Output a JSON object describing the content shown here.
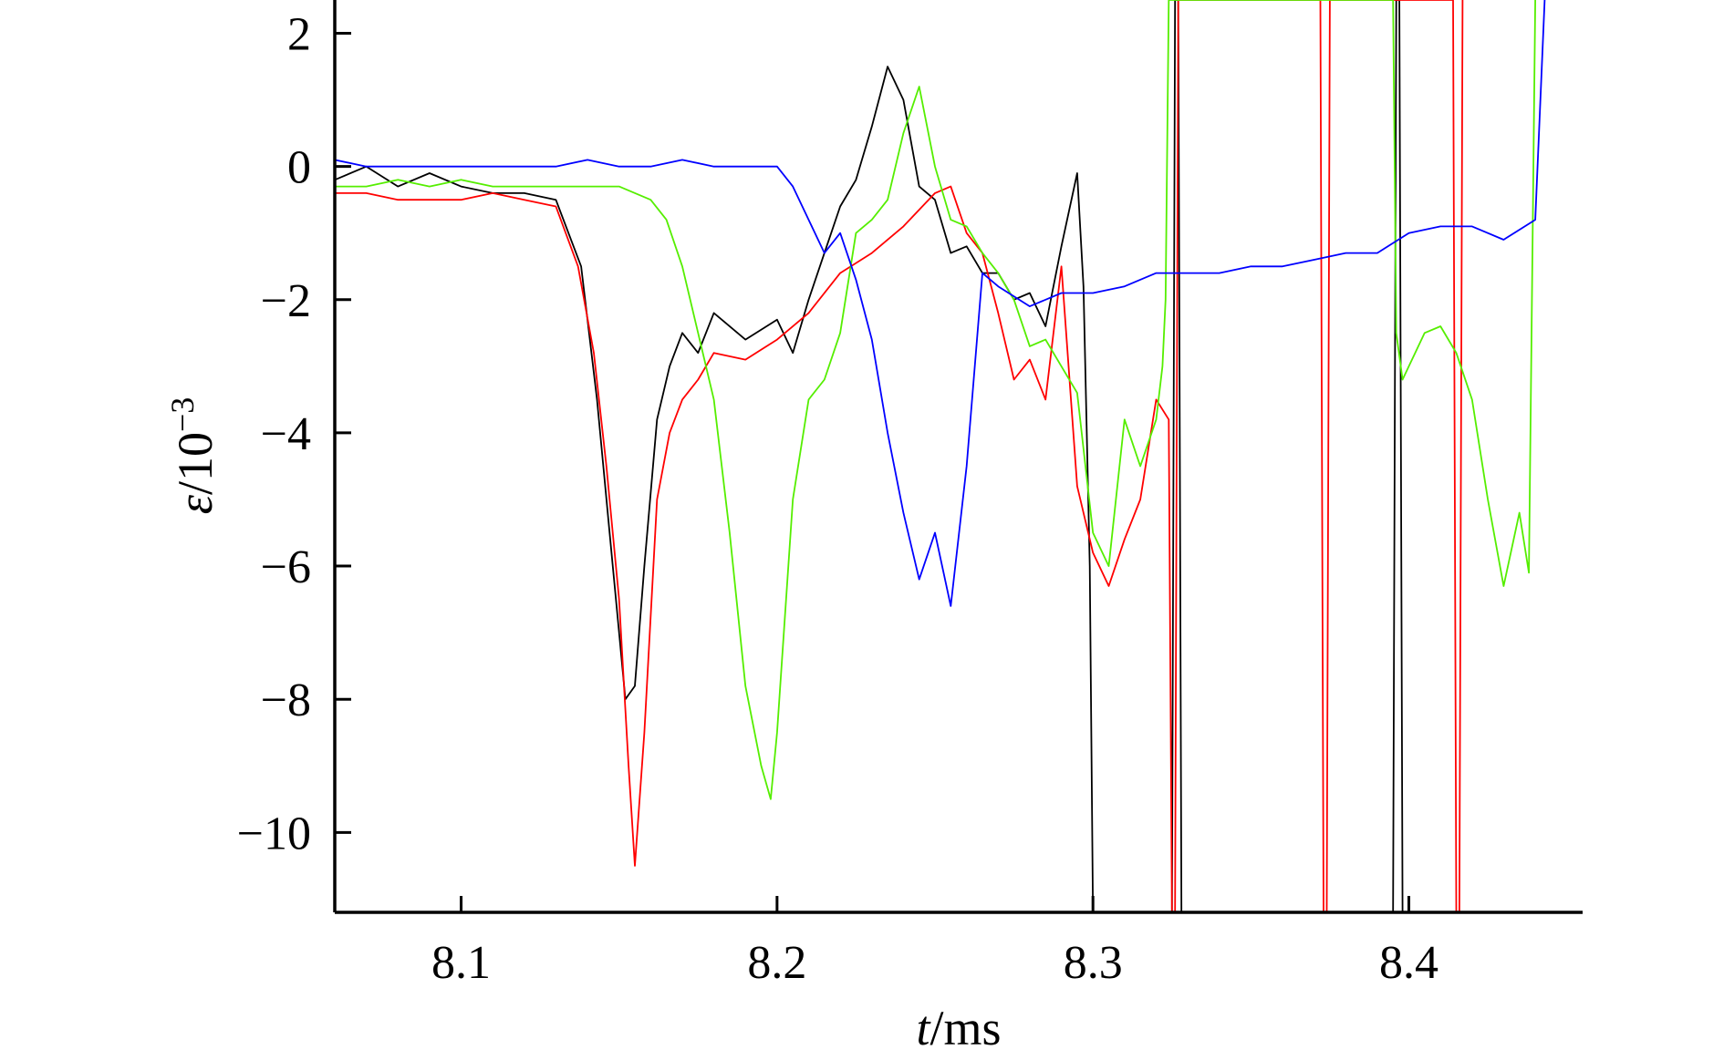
{
  "chart_data": {
    "type": "line",
    "title": "",
    "xlabel": {
      "italic": "t",
      "rest": "/ms"
    },
    "ylabel": {
      "italic": "ε",
      "rest": "/10",
      "sup": "−3"
    },
    "xlim": [
      8.06,
      8.455
    ],
    "ylim": [
      -11.2,
      2.5
    ],
    "xticks": [
      8.1,
      8.2,
      8.3,
      8.4
    ],
    "xtick_labels": [
      "8.1",
      "8.2",
      "8.3",
      "8.4"
    ],
    "yticks": [
      2,
      0,
      -2,
      -4,
      -6,
      -8,
      -10
    ],
    "ytick_labels": [
      "2",
      "0",
      "−2",
      "−4",
      "−6",
      "−8",
      "−10"
    ],
    "grid": false,
    "legend": "none",
    "series": [
      {
        "color": "#000000",
        "x": [
          8.06,
          8.07,
          8.08,
          8.09,
          8.1,
          8.11,
          8.12,
          8.13,
          8.138,
          8.143,
          8.147,
          8.15,
          8.152,
          8.155,
          8.158,
          8.162,
          8.166,
          8.17,
          8.175,
          8.18,
          8.19,
          8.2,
          8.205,
          8.21,
          8.215,
          8.22,
          8.225,
          8.23,
          8.235,
          8.24,
          8.245,
          8.25,
          8.255,
          8.26,
          8.265,
          8.27,
          8.275,
          8.28,
          8.285,
          8.29,
          8.295,
          8.297,
          8.299,
          8.3,
          8.32,
          8.325,
          8.326,
          8.327,
          8.328,
          8.395,
          8.396,
          8.397,
          8.398
        ],
        "y": [
          -0.2,
          0.0,
          -0.3,
          -0.1,
          -0.3,
          -0.4,
          -0.4,
          -0.5,
          -1.5,
          -3.5,
          -5.5,
          -7.0,
          -8.0,
          -7.8,
          -6.0,
          -3.8,
          -3.0,
          -2.5,
          -2.8,
          -2.2,
          -2.6,
          -2.3,
          -2.8,
          -2.0,
          -1.3,
          -0.6,
          -0.2,
          0.6,
          1.5,
          1.0,
          -0.3,
          -0.5,
          -1.3,
          -1.2,
          -1.6,
          -1.6,
          -2.0,
          -1.9,
          -2.4,
          -1.2,
          -0.1,
          -1.8,
          -6.0,
          -11.2,
          -11.2,
          -11.2,
          2.5,
          2.5,
          -11.2,
          -11.2,
          2.5,
          2.5,
          -11.2
        ]
      },
      {
        "color": "#ff0000",
        "x": [
          8.06,
          8.07,
          8.08,
          8.09,
          8.1,
          8.11,
          8.12,
          8.13,
          8.137,
          8.142,
          8.146,
          8.15,
          8.153,
          8.155,
          8.158,
          8.162,
          8.166,
          8.17,
          8.175,
          8.18,
          8.19,
          8.2,
          8.21,
          8.22,
          8.23,
          8.24,
          8.25,
          8.255,
          8.26,
          8.265,
          8.27,
          8.275,
          8.28,
          8.285,
          8.29,
          8.295,
          8.3,
          8.305,
          8.31,
          8.315,
          8.32,
          8.324,
          8.325,
          8.326,
          8.327,
          8.372,
          8.373,
          8.374,
          8.375,
          8.414,
          8.415,
          8.416,
          8.417
        ],
        "y": [
          -0.4,
          -0.4,
          -0.5,
          -0.5,
          -0.5,
          -0.4,
          -0.5,
          -0.6,
          -1.5,
          -2.8,
          -4.5,
          -6.5,
          -9.0,
          -10.5,
          -8.5,
          -5.0,
          -4.0,
          -3.5,
          -3.2,
          -2.8,
          -2.9,
          -2.6,
          -2.2,
          -1.6,
          -1.3,
          -0.9,
          -0.4,
          -0.3,
          -1.0,
          -1.3,
          -2.2,
          -3.2,
          -2.9,
          -3.5,
          -1.5,
          -4.8,
          -5.8,
          -6.3,
          -5.6,
          -5.0,
          -3.5,
          -3.8,
          -11.2,
          -11.2,
          2.5,
          2.5,
          -11.2,
          -11.2,
          2.5,
          2.5,
          -11.2,
          -11.2,
          2.5
        ]
      },
      {
        "color": "#55ee00",
        "x": [
          8.06,
          8.07,
          8.08,
          8.09,
          8.1,
          8.11,
          8.12,
          8.13,
          8.14,
          8.15,
          8.16,
          8.165,
          8.17,
          8.175,
          8.18,
          8.185,
          8.19,
          8.195,
          8.198,
          8.2,
          8.205,
          8.21,
          8.215,
          8.22,
          8.225,
          8.23,
          8.235,
          8.24,
          8.245,
          8.25,
          8.255,
          8.26,
          8.265,
          8.27,
          8.275,
          8.28,
          8.285,
          8.29,
          8.295,
          8.3,
          8.305,
          8.31,
          8.315,
          8.32,
          8.322,
          8.323,
          8.324,
          8.395,
          8.396,
          8.398,
          8.4,
          8.405,
          8.41,
          8.415,
          8.42,
          8.425,
          8.43,
          8.435,
          8.438,
          8.44
        ],
        "y": [
          -0.3,
          -0.3,
          -0.2,
          -0.3,
          -0.2,
          -0.3,
          -0.3,
          -0.3,
          -0.3,
          -0.3,
          -0.5,
          -0.8,
          -1.5,
          -2.5,
          -3.5,
          -5.5,
          -7.8,
          -9.0,
          -9.5,
          -8.5,
          -5.0,
          -3.5,
          -3.2,
          -2.5,
          -1.0,
          -0.8,
          -0.5,
          0.5,
          1.2,
          0.0,
          -0.8,
          -0.9,
          -1.3,
          -1.6,
          -2.0,
          -2.7,
          -2.6,
          -3.0,
          -3.4,
          -5.5,
          -6.0,
          -3.8,
          -4.5,
          -3.8,
          -3.0,
          -2.0,
          2.5,
          2.5,
          -2.5,
          -3.2,
          -3.0,
          -2.5,
          -2.4,
          -2.8,
          -3.5,
          -5.0,
          -6.3,
          -5.2,
          -6.1,
          2.5
        ]
      },
      {
        "color": "#0000ff",
        "x": [
          8.06,
          8.07,
          8.08,
          8.09,
          8.1,
          8.11,
          8.12,
          8.13,
          8.14,
          8.15,
          8.16,
          8.17,
          8.18,
          8.19,
          8.2,
          8.205,
          8.21,
          8.215,
          8.22,
          8.225,
          8.23,
          8.235,
          8.24,
          8.245,
          8.25,
          8.255,
          8.26,
          8.265,
          8.27,
          8.28,
          8.29,
          8.3,
          8.31,
          8.32,
          8.33,
          8.34,
          8.35,
          8.36,
          8.37,
          8.38,
          8.39,
          8.4,
          8.41,
          8.42,
          8.43,
          8.44,
          8.443
        ],
        "y": [
          0.1,
          0.0,
          0.0,
          0.0,
          0.0,
          0.0,
          0.0,
          0.0,
          0.1,
          0.0,
          0.0,
          0.1,
          0.0,
          0.0,
          0.0,
          -0.3,
          -0.8,
          -1.3,
          -1.0,
          -1.7,
          -2.6,
          -4.0,
          -5.2,
          -6.2,
          -5.5,
          -6.6,
          -4.5,
          -1.6,
          -1.8,
          -2.1,
          -1.9,
          -1.9,
          -1.8,
          -1.6,
          -1.6,
          -1.6,
          -1.5,
          -1.5,
          -1.4,
          -1.3,
          -1.3,
          -1.0,
          -0.9,
          -0.9,
          -1.1,
          -0.8,
          2.5
        ]
      }
    ]
  }
}
